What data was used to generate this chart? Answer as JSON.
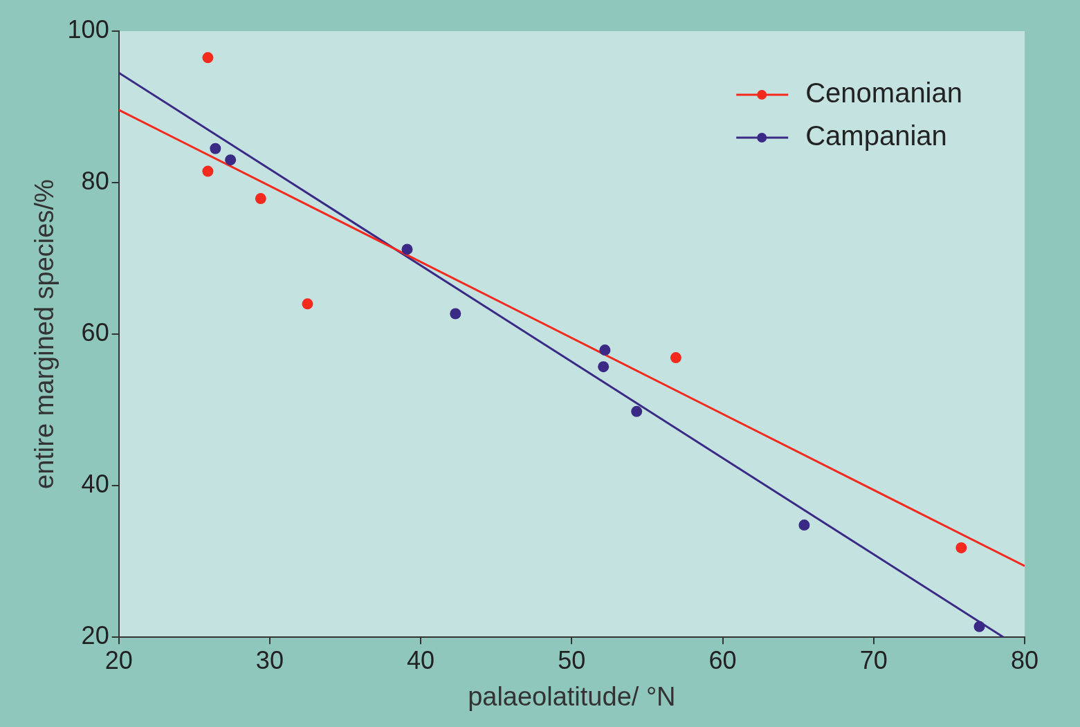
{
  "chart_data": {
    "type": "scatter",
    "xlabel": "palaeolatitude/ °N",
    "ylabel": "entire margined species/%",
    "xlim": [
      20,
      80
    ],
    "ylim": [
      20,
      100
    ],
    "xticks": [
      20,
      30,
      40,
      50,
      60,
      70,
      80
    ],
    "yticks": [
      20,
      40,
      60,
      80,
      100
    ],
    "grid": false,
    "legend": "top right",
    "marker": "circle",
    "series": [
      {
        "name": "Cenomanian",
        "color": "#f52a1e",
        "x": [
          25.9,
          25.9,
          29.4,
          32.5,
          56.9,
          75.8
        ],
        "values": [
          96.5,
          81.5,
          77.9,
          64.0,
          56.9,
          31.8
        ]
      },
      {
        "name": "Campanian",
        "color": "#3b2a85",
        "x": [
          26.4,
          27.4,
          39.1,
          42.3,
          52.2,
          52.1,
          54.3,
          65.4,
          77.0
        ],
        "values": [
          84.5,
          83.0,
          71.2,
          62.7,
          57.9,
          55.7,
          49.8,
          34.8,
          21.4
        ]
      },
      {
        "type": "line",
        "color": "#f52a1e",
        "marker": "none",
        "x": [
          20,
          80
        ],
        "values": [
          89.6,
          29.4
        ]
      },
      {
        "type": "line",
        "color": "#3b2a85",
        "marker": "none",
        "x": [
          20,
          78.6
        ],
        "values": [
          94.5,
          20
        ]
      }
    ]
  }
}
